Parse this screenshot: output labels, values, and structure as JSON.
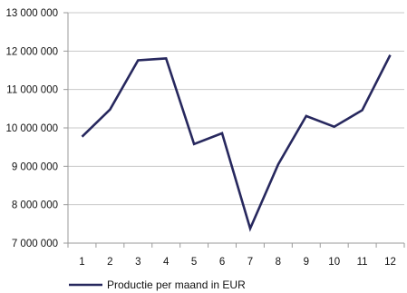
{
  "chart_data": {
    "type": "line",
    "title": "",
    "xlabel": "",
    "ylabel": "",
    "x": [
      "1",
      "2",
      "3",
      "4",
      "5",
      "6",
      "7",
      "8",
      "9",
      "10",
      "11",
      "12"
    ],
    "series": [
      {
        "name": "Productie per maand in EUR",
        "values": [
          9770000,
          10480000,
          11760000,
          11810000,
          9580000,
          9860000,
          7380000,
          9050000,
          10310000,
          10030000,
          10460000,
          11900000
        ],
        "color": "#27285e"
      }
    ],
    "ylim": [
      7000000,
      13000000
    ],
    "yticks": [
      7000000,
      8000000,
      9000000,
      10000000,
      11000000,
      12000000,
      13000000
    ],
    "ytick_labels": [
      "7 000 000",
      "8 000 000",
      "9 000 000",
      "10 000 000",
      "11 000 000",
      "12 000 000",
      "13 000 000"
    ],
    "grid": "horizontal",
    "legend_position": "bottom-left",
    "colors": {
      "line": "#27285e",
      "grid": "#c8c8c8",
      "axis": "#9a9a9a",
      "text": "#111111"
    }
  }
}
